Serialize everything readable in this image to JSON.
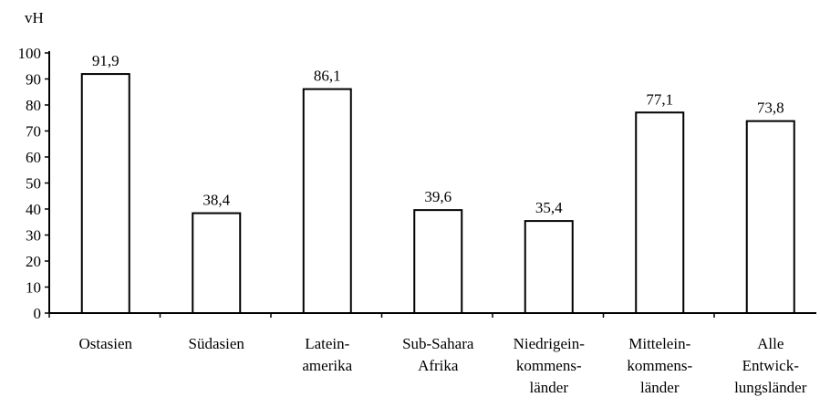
{
  "chart_data": {
    "type": "bar",
    "unit_label": "vH",
    "categories": [
      [
        "Ostasien"
      ],
      [
        "Südasien"
      ],
      [
        "Latein-",
        "amerika"
      ],
      [
        "Sub-Sahara",
        "Afrika"
      ],
      [
        "Niedrigein-",
        "kommens-",
        "länder"
      ],
      [
        "Mittelein-",
        "kommens-",
        "länder"
      ],
      [
        "Alle",
        "Entwick-",
        "lungsländer"
      ]
    ],
    "values": [
      91.9,
      38.4,
      86.1,
      39.6,
      35.4,
      77.1,
      73.8
    ],
    "value_labels": [
      "91,9",
      "38,4",
      "86,1",
      "39,6",
      "35,4",
      "77,1",
      "73,8"
    ],
    "yticks": [
      0,
      10,
      20,
      30,
      40,
      50,
      60,
      70,
      80,
      90,
      100
    ],
    "ylim": [
      0,
      100
    ],
    "grid": false,
    "legend": "none",
    "colors": {
      "bar_fill": "#ffffff",
      "bar_stroke": "#000000",
      "axis": "#000000"
    }
  }
}
